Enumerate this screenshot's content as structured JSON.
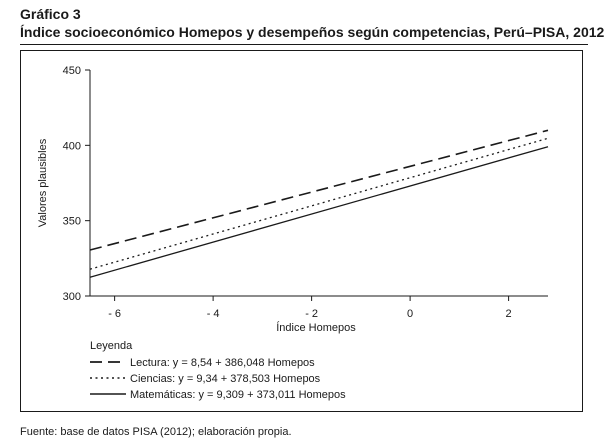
{
  "figure": {
    "label": "Gráfico 3",
    "title": "Índice socioeconómico Homepos y desempeños según competencias, Perú–PISA, 2012",
    "source": "Fuente: base de datos PISA (2012); elaboración propia."
  },
  "chart_data": {
    "type": "line",
    "xlabel": "Índice Homepos",
    "ylabel": "Valores plausibles",
    "xlim": [
      -6.5,
      2.8
    ],
    "ylim": [
      300,
      450
    ],
    "x_ticks": [
      -6,
      -4,
      -2,
      0,
      2
    ],
    "x_tick_labels": [
      "- 6",
      "- 4",
      "- 2",
      "0",
      "2"
    ],
    "y_ticks": [
      300,
      350,
      400,
      450
    ],
    "y_tick_labels": [
      "300",
      "350",
      "400",
      "450"
    ],
    "grid": false,
    "legend": {
      "title": "Leyenda",
      "placement": "bottom-left"
    },
    "series": [
      {
        "name": "Lectura: y = 8,54 + 386,048 Homepos",
        "slope": 8.54,
        "intercept": 386.048,
        "dash": "long-dash",
        "color": "#1a1a1a",
        "x": [
          -6.5,
          2.8
        ],
        "y": [
          330.5,
          409.96
        ]
      },
      {
        "name": "Ciencias: y = 9,34 + 378,503 Homepos",
        "slope": 9.34,
        "intercept": 378.503,
        "dash": "dotted",
        "color": "#1a1a1a",
        "x": [
          -6.5,
          2.8
        ],
        "y": [
          317.79,
          404.65
        ]
      },
      {
        "name": "Matemáticas: y = 9,309 + 373,011 Homepos",
        "slope": 9.309,
        "intercept": 373.011,
        "dash": "solid",
        "color": "#1a1a1a",
        "x": [
          -6.5,
          2.8
        ],
        "y": [
          312.5,
          399.08
        ]
      }
    ]
  }
}
